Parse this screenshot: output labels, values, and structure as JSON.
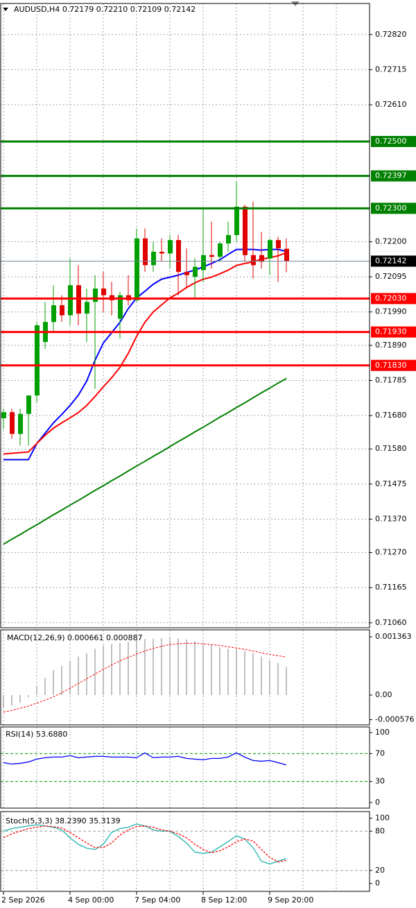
{
  "chart_data": [
    {
      "type": "candlestick",
      "title": "AUDUSD,H4  0.72179 0.72210 0.72109 0.72142",
      "categories": [
        "2 Sep 2026",
        null,
        null,
        null,
        null,
        null,
        null,
        null,
        "4 Sep 00:00",
        null,
        null,
        null,
        null,
        null,
        null,
        null,
        "7 Sep 04:00",
        null,
        null,
        null,
        null,
        null,
        null,
        null,
        "8 Sep 12:00",
        null,
        null,
        null,
        null,
        null,
        null,
        null,
        "9 Sep 20:00",
        null,
        null
      ],
      "open": [
        0.71672,
        0.7169,
        0.71625,
        0.71685,
        0.7174,
        0.719,
        0.7196,
        0.7201,
        0.7198,
        0.7207,
        0.71985,
        0.7202,
        0.7206,
        0.7204,
        0.7197,
        0.7204,
        0.72025,
        0.7221,
        0.7213,
        0.7217,
        0.72165,
        0.72205,
        0.7211,
        0.72095,
        0.72115,
        0.7216,
        0.72155,
        0.72195,
        0.7222,
        0.72305,
        0.7216,
        0.7216,
        0.7215,
        0.72205,
        0.72179
      ],
      "high": [
        0.717,
        0.717,
        0.717,
        0.7174,
        0.7196,
        0.7202,
        0.7207,
        0.7204,
        0.7215,
        0.7213,
        0.7206,
        0.721,
        0.7211,
        0.7208,
        0.7205,
        0.721,
        0.7224,
        0.7224,
        0.722,
        0.7221,
        0.7222,
        0.7222,
        0.7218,
        0.7215,
        0.723,
        0.7226,
        0.722,
        0.7226,
        0.7238,
        0.7231,
        0.7232,
        0.7223,
        0.7221,
        0.72215,
        0.7221
      ],
      "low": [
        0.7164,
        0.7161,
        0.7159,
        0.7159,
        0.7172,
        0.7188,
        0.7193,
        0.7196,
        0.7195,
        0.7195,
        0.719,
        0.7176,
        0.7199,
        0.7198,
        0.7191,
        0.7201,
        0.7202,
        0.7211,
        0.7211,
        0.7214,
        0.7212,
        0.7204,
        0.7206,
        0.7203,
        0.7208,
        0.7212,
        0.7214,
        0.7217,
        0.722,
        0.7214,
        0.7209,
        0.7212,
        0.721,
        0.7208,
        0.72109
      ],
      "close": [
        0.7169,
        0.71625,
        0.71685,
        0.7174,
        0.7195,
        0.7196,
        0.7201,
        0.7198,
        0.7207,
        0.71985,
        0.7202,
        0.7206,
        0.7204,
        0.72025,
        0.7204,
        0.72025,
        0.7221,
        0.7213,
        0.7217,
        0.72165,
        0.72205,
        0.7211,
        0.721,
        0.72125,
        0.7216,
        0.72155,
        0.72195,
        0.7222,
        0.72305,
        0.7216,
        0.7213,
        0.7214,
        0.72205,
        0.7218,
        0.72142
      ],
      "up_color": "#00a000",
      "down_color": "#e00000",
      "overlays": [
        {
          "color": "#0000ff",
          "values": [
            0.71548,
            0.71548,
            0.71548,
            0.71548,
            0.71596,
            0.71627,
            0.71658,
            0.71683,
            0.7171,
            0.71741,
            0.71783,
            0.71845,
            0.71897,
            0.71928,
            0.71959,
            0.72,
            0.72032,
            0.72052,
            0.72073,
            0.72088,
            0.72094,
            0.721,
            0.72108,
            0.72115,
            0.72125,
            0.72135,
            0.72146,
            0.72162,
            0.72177,
            0.72177,
            0.72177,
            0.72175,
            0.72177,
            0.72177,
            0.72171
          ]
        },
        {
          "color": "#ff0000",
          "values": [
            0.71565,
            0.71567,
            0.71569,
            0.71571,
            0.71596,
            0.71621,
            0.71642,
            0.71658,
            0.71673,
            0.71689,
            0.7171,
            0.71737,
            0.71766,
            0.71793,
            0.71824,
            0.71866,
            0.71917,
            0.71959,
            0.7199,
            0.72011,
            0.72032,
            0.72046,
            0.72063,
            0.72077,
            0.72088,
            0.72094,
            0.72104,
            0.72115,
            0.72129,
            0.72135,
            0.7214,
            0.72148,
            0.72152,
            0.72158,
            0.72167
          ]
        },
        {
          "color": "#008000",
          "values": [
            0.71295,
            0.7131,
            0.71324,
            0.71339,
            0.71353,
            0.71368,
            0.71383,
            0.71397,
            0.71412,
            0.71426,
            0.71441,
            0.71456,
            0.7147,
            0.71485,
            0.71499,
            0.71514,
            0.71529,
            0.71543,
            0.71558,
            0.71572,
            0.71587,
            0.71602,
            0.71616,
            0.71631,
            0.71645,
            0.7166,
            0.71675,
            0.71689,
            0.71704,
            0.71718,
            0.71733,
            0.71748,
            0.71762,
            0.71777,
            0.71791
          ]
        }
      ],
      "levels": [
        {
          "value": 0.725,
          "label": "0.72500",
          "color": "#008000"
        },
        {
          "value": 0.72397,
          "label": "0.72397",
          "color": "#008000"
        },
        {
          "value": 0.723,
          "label": "0.72300",
          "color": "#008000"
        },
        {
          "value": 0.7203,
          "label": "0.72030",
          "color": "#ff0000"
        },
        {
          "value": 0.7193,
          "label": "0.71930",
          "color": "#ff0000"
        },
        {
          "value": 0.7183,
          "label": "0.71830",
          "color": "#ff0000"
        }
      ],
      "last_price": 0.72142,
      "ylim": [
        0.71045,
        0.72913
      ],
      "yticks": [
        {
          "value": 0.7282,
          "label": "0.72820"
        },
        0.72715,
        {
          "value": 0.7261,
          "label": "0.72610"
        },
        {
          "value": 0.722,
          "label": "0.72200"
        },
        0.72095,
        {
          "value": 0.7199,
          "label": "0.71990"
        },
        {
          "value": 0.7189,
          "label": "0.71890"
        },
        0.71785,
        {
          "value": 0.7168,
          "label": "0.71680"
        },
        {
          "value": 0.7158,
          "label": "0.71580"
        },
        0.71475,
        {
          "value": 0.7137,
          "label": "0.71370"
        },
        {
          "value": 0.7127,
          "label": "0.71270"
        },
        0.71165,
        {
          "value": 0.7106,
          "label": "0.71060"
        }
      ],
      "grid": true
    },
    {
      "type": "macd",
      "title": "MACD(12,26,9) 0.000661 0.000887",
      "values": [
        -0.0003,
        -0.00025,
        -0.00018,
        -5e-05,
        0.00022,
        0.0004,
        0.00058,
        0.00068,
        0.0008,
        0.0009,
        0.00098,
        0.00108,
        0.00115,
        0.00119,
        0.00122,
        0.00124,
        0.0013,
        0.00131,
        0.00132,
        0.00133,
        0.00134,
        0.00133,
        0.0013,
        0.00126,
        0.00122,
        0.00117,
        0.00112,
        0.00108,
        0.00108,
        0.00104,
        0.00098,
        0.0009,
        0.00082,
        0.00075,
        0.000661
      ],
      "signal": [
        -0.0004,
        -0.00036,
        -0.00031,
        -0.00026,
        -0.00019,
        -0.00012,
        -4e-05,
        5e-05,
        0.00016,
        0.00027,
        0.00038,
        0.00049,
        0.0006,
        0.0007,
        0.0008,
        0.00088,
        0.00096,
        0.00103,
        0.00109,
        0.00114,
        0.00118,
        0.0012,
        0.00121,
        0.00121,
        0.0012,
        0.00118,
        0.00116,
        0.00113,
        0.0011,
        0.00107,
        0.00103,
        0.00099,
        0.00095,
        0.00092,
        0.000887
      ],
      "color": "#c0c0c0",
      "signal_color": "#ff0000",
      "ylim": [
        -0.000698,
        0.001525
      ],
      "yticks": [
        0.001363,
        {
          "value": 0,
          "label": "0.00"
        },
        -0.000576
      ]
    },
    {
      "type": "line",
      "title": "RSI(14) 53.6880",
      "series": [
        {
          "color": "#0000ff",
          "values": [
            57,
            55,
            56,
            58,
            62,
            64,
            65,
            65,
            67,
            64,
            65,
            66,
            66,
            65,
            65,
            65,
            64,
            71,
            64,
            65,
            65,
            66,
            63,
            62,
            61,
            63,
            63,
            65,
            71,
            65,
            60,
            59,
            60,
            57,
            53.688
          ]
        }
      ],
      "levels": [
        70,
        30
      ],
      "level_color": "#009900",
      "ylim": [
        -8,
        108
      ],
      "yticks": [
        100,
        70,
        30,
        0
      ]
    },
    {
      "type": "line",
      "title": "Stoch(5,3,3) 38.2390 35.3139",
      "series": [
        {
          "color": "#20b2aa",
          "values": [
            80,
            84,
            86,
            88,
            90,
            88,
            86,
            82,
            70,
            60,
            54,
            52,
            60,
            78,
            84,
            86,
            91,
            88,
            82,
            80,
            80,
            72,
            62,
            48,
            46,
            48,
            56,
            64,
            73,
            68,
            55,
            34,
            30,
            34,
            38.239
          ]
        },
        {
          "color": "#ff0000",
          "dashed": true,
          "values": [
            70,
            76,
            80,
            84,
            86,
            88,
            87,
            85,
            78,
            70,
            62,
            55,
            55,
            62,
            74,
            82,
            87,
            88,
            86,
            82,
            80,
            76,
            70,
            60,
            52,
            47,
            50,
            56,
            64,
            68,
            65,
            52,
            40,
            33,
            35.3139
          ]
        }
      ],
      "levels": [
        80,
        20
      ],
      "level_color": "#a0a0a0",
      "ylim": [
        -12,
        110
      ],
      "yticks": [
        100,
        80,
        20,
        0
      ]
    }
  ]
}
